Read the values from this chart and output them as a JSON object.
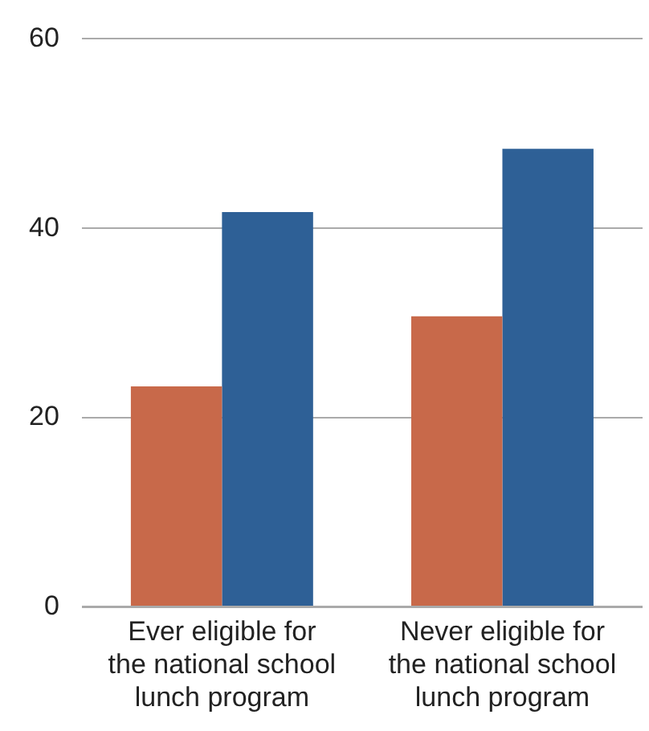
{
  "chart_data": {
    "type": "bar",
    "categories": [
      "Ever eligible for the national school lunch program",
      "Never eligible for the national school lunch program"
    ],
    "series": [
      {
        "color": "#c8694a",
        "values": [
          23.3,
          30.7
        ]
      },
      {
        "color": "#2e6096",
        "values": [
          41.7,
          48.4
        ]
      }
    ],
    "ylim": [
      0,
      60
    ],
    "yticks": [
      0,
      20,
      40,
      60
    ],
    "grid": "y",
    "legend": false
  }
}
